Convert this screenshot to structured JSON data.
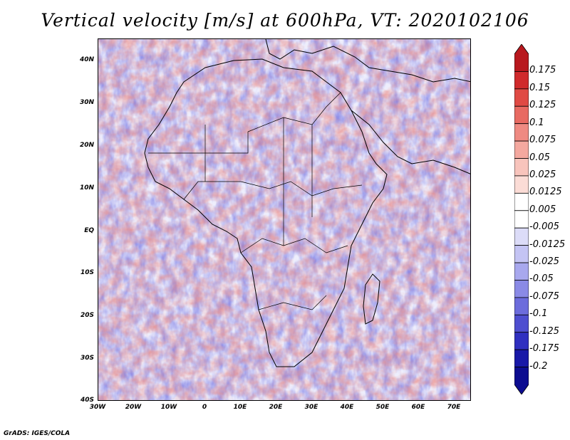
{
  "title": "Vertical velocity [m/s] at 600hPa, VT: 2020102106",
  "credit": "GrADS: IGES/COLA",
  "lat_labels": [
    "40N",
    "30N",
    "20N",
    "10N",
    "EQ",
    "10S",
    "20S",
    "30S",
    "40S"
  ],
  "lon_labels": [
    "30W",
    "20W",
    "10W",
    "0",
    "10E",
    "20E",
    "30E",
    "40E",
    "50E",
    "60E",
    "70E"
  ],
  "colorbar": {
    "labels": [
      "0.175",
      "0.15",
      "0.125",
      "0.1",
      "0.075",
      "0.05",
      "0.025",
      "0.0125",
      "0.005",
      "-0.005",
      "-0.0125",
      "-0.025",
      "-0.05",
      "-0.075",
      "-0.1",
      "-0.125",
      "-0.175",
      "-0.2"
    ],
    "colors": [
      "#b8181e",
      "#d02a2c",
      "#e04a44",
      "#e86a62",
      "#ef8a82",
      "#f4a89f",
      "#f8c4bc",
      "#fbdcd6",
      "#ffffff",
      "#ffffff",
      "#dcdcf8",
      "#c4c4f4",
      "#a8a8ee",
      "#8a8ae6",
      "#6c6cdc",
      "#4e4ed0",
      "#3030c0",
      "#1818a8",
      "#0c0c90"
    ]
  },
  "colors": {
    "positive": "#e0605a",
    "negative": "#6a6ae0",
    "land_border": "#000000"
  }
}
